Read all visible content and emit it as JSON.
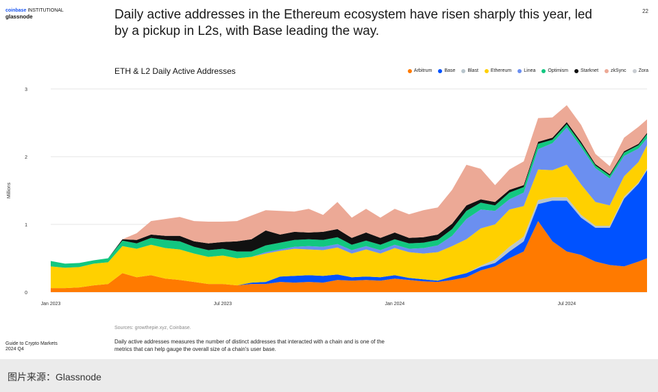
{
  "brand": {
    "coinbase": "coinbase",
    "institutional": "INSTITUTIONAL",
    "glassnode": "glassnode"
  },
  "page_number": "22",
  "headline": "Daily active addresses in the Ethereum ecosystem have risen sharply this year, led by a pickup in L2s, with Base leading the way.",
  "source": "Sources: growthepie.xyz, Coinbase.",
  "footer": {
    "report_line1": "Guide to Crypto Markets",
    "report_line2": "2024 Q4",
    "description": "Daily active addresses measures the number of distinct addresses that interacted with a chain and is one of the metrics that can help gauge the overall size of a chain's user base."
  },
  "caption": "图片来源：Glassnode",
  "chart_data": {
    "type": "area",
    "stacked": true,
    "title": "ETH & L2 Daily Active Addresses",
    "ylabel": "Millions",
    "xlabel": "",
    "ylim": [
      0,
      3
    ],
    "yticks": [
      0,
      1,
      2,
      3
    ],
    "xticks": [
      {
        "label": "Jan 2023",
        "x": 0
      },
      {
        "label": "Jul 2023",
        "x": 6
      },
      {
        "label": "Jan 2024",
        "x": 12
      },
      {
        "label": "Jul 2024",
        "x": 18
      }
    ],
    "xlim": [
      0,
      20.8
    ],
    "legend_position": "top-right",
    "x": [
      0,
      0.5,
      1,
      1.5,
      2,
      2.5,
      3,
      3.5,
      4,
      4.5,
      5,
      5.5,
      6,
      6.5,
      7,
      7.5,
      8,
      8.5,
      9,
      9.5,
      10,
      10.5,
      11,
      11.5,
      12,
      12.5,
      13,
      13.5,
      14,
      14.5,
      15,
      15.5,
      16,
      16.5,
      17,
      17.5,
      18,
      18.5,
      19,
      19.5,
      20,
      20.5,
      20.8
    ],
    "series": [
      {
        "name": "Arbitrum",
        "color": "#ff7a00",
        "values": [
          0.06,
          0.06,
          0.07,
          0.1,
          0.12,
          0.28,
          0.22,
          0.25,
          0.2,
          0.18,
          0.15,
          0.12,
          0.12,
          0.1,
          0.12,
          0.12,
          0.15,
          0.14,
          0.15,
          0.14,
          0.18,
          0.17,
          0.18,
          0.17,
          0.2,
          0.18,
          0.16,
          0.15,
          0.18,
          0.22,
          0.32,
          0.38,
          0.5,
          0.6,
          1.05,
          0.75,
          0.6,
          0.55,
          0.45,
          0.4,
          0.38,
          0.45,
          0.5
        ]
      },
      {
        "name": "Base",
        "color": "#0052ff",
        "values": [
          0,
          0,
          0,
          0,
          0,
          0,
          0,
          0,
          0,
          0,
          0,
          0,
          0,
          0,
          0.02,
          0.03,
          0.08,
          0.1,
          0.1,
          0.1,
          0.08,
          0.05,
          0.05,
          0.05,
          0.05,
          0.03,
          0.03,
          0.02,
          0.05,
          0.06,
          0.05,
          0.05,
          0.1,
          0.15,
          0.25,
          0.6,
          0.75,
          0.55,
          0.5,
          0.55,
          1.0,
          1.15,
          1.3
        ]
      },
      {
        "name": "Blast",
        "color": "#b8c5cc",
        "values": [
          0,
          0,
          0,
          0,
          0,
          0,
          0,
          0,
          0,
          0,
          0,
          0,
          0,
          0,
          0,
          0,
          0,
          0,
          0,
          0,
          0,
          0,
          0,
          0,
          0,
          0,
          0,
          0,
          0,
          0,
          0.02,
          0.05,
          0.07,
          0.07,
          0.06,
          0.05,
          0.05,
          0.04,
          0.03,
          0.03,
          0.03,
          0.02,
          0.02
        ]
      },
      {
        "name": "Ethereum",
        "color": "#ffd000",
        "values": [
          0.32,
          0.3,
          0.3,
          0.32,
          0.32,
          0.4,
          0.42,
          0.45,
          0.45,
          0.45,
          0.42,
          0.4,
          0.42,
          0.4,
          0.38,
          0.42,
          0.38,
          0.4,
          0.38,
          0.38,
          0.4,
          0.35,
          0.4,
          0.35,
          0.4,
          0.38,
          0.38,
          0.42,
          0.45,
          0.5,
          0.55,
          0.52,
          0.55,
          0.45,
          0.45,
          0.4,
          0.48,
          0.45,
          0.35,
          0.3,
          0.3,
          0.3,
          0.35
        ]
      },
      {
        "name": "Linea",
        "color": "#6b8ff0",
        "values": [
          0,
          0,
          0,
          0,
          0,
          0,
          0,
          0,
          0,
          0,
          0,
          0,
          0,
          0,
          0,
          0.02,
          0.02,
          0.03,
          0.05,
          0.05,
          0.05,
          0.05,
          0.05,
          0.05,
          0.05,
          0.05,
          0.08,
          0.1,
          0.15,
          0.3,
          0.28,
          0.2,
          0.15,
          0.2,
          0.3,
          0.4,
          0.55,
          0.55,
          0.5,
          0.4,
          0.3,
          0.2,
          0.1
        ]
      },
      {
        "name": "Optimism",
        "color": "#12c780",
        "values": [
          0.08,
          0.06,
          0.06,
          0.05,
          0.06,
          0.08,
          0.08,
          0.1,
          0.12,
          0.12,
          0.1,
          0.1,
          0.1,
          0.1,
          0.08,
          0.1,
          0.1,
          0.1,
          0.1,
          0.1,
          0.1,
          0.08,
          0.08,
          0.08,
          0.08,
          0.08,
          0.08,
          0.08,
          0.1,
          0.12,
          0.1,
          0.08,
          0.1,
          0.08,
          0.08,
          0.05,
          0.05,
          0.05,
          0.04,
          0.04,
          0.05,
          0.05,
          0.06
        ]
      },
      {
        "name": "Starknet",
        "color": "#111111",
        "values": [
          0,
          0,
          0,
          0,
          0,
          0.02,
          0.05,
          0.05,
          0.06,
          0.08,
          0.08,
          0.1,
          0.1,
          0.15,
          0.18,
          0.22,
          0.12,
          0.12,
          0.1,
          0.12,
          0.12,
          0.1,
          0.12,
          0.1,
          0.1,
          0.08,
          0.08,
          0.08,
          0.08,
          0.08,
          0.05,
          0.05,
          0.04,
          0.03,
          0.03,
          0.03,
          0.03,
          0.03,
          0.02,
          0.02,
          0.02,
          0.02,
          0.02
        ]
      },
      {
        "name": "zkSync",
        "color": "#eca996",
        "values": [
          0,
          0,
          0,
          0,
          0,
          0,
          0.1,
          0.2,
          0.25,
          0.28,
          0.3,
          0.32,
          0.3,
          0.3,
          0.35,
          0.3,
          0.35,
          0.3,
          0.35,
          0.25,
          0.4,
          0.3,
          0.35,
          0.3,
          0.35,
          0.35,
          0.4,
          0.4,
          0.5,
          0.6,
          0.45,
          0.25,
          0.3,
          0.35,
          0.35,
          0.3,
          0.25,
          0.25,
          0.15,
          0.12,
          0.2,
          0.25,
          0.2
        ]
      },
      {
        "name": "Zora",
        "color": "#c9cdd2",
        "values": [
          0,
          0,
          0,
          0,
          0,
          0,
          0,
          0,
          0,
          0,
          0,
          0,
          0,
          0,
          0,
          0,
          0,
          0,
          0,
          0,
          0,
          0,
          0,
          0,
          0,
          0,
          0,
          0,
          0,
          0,
          0,
          0,
          0,
          0,
          0,
          0,
          0,
          0,
          0,
          0,
          0,
          0,
          0
        ]
      }
    ]
  }
}
